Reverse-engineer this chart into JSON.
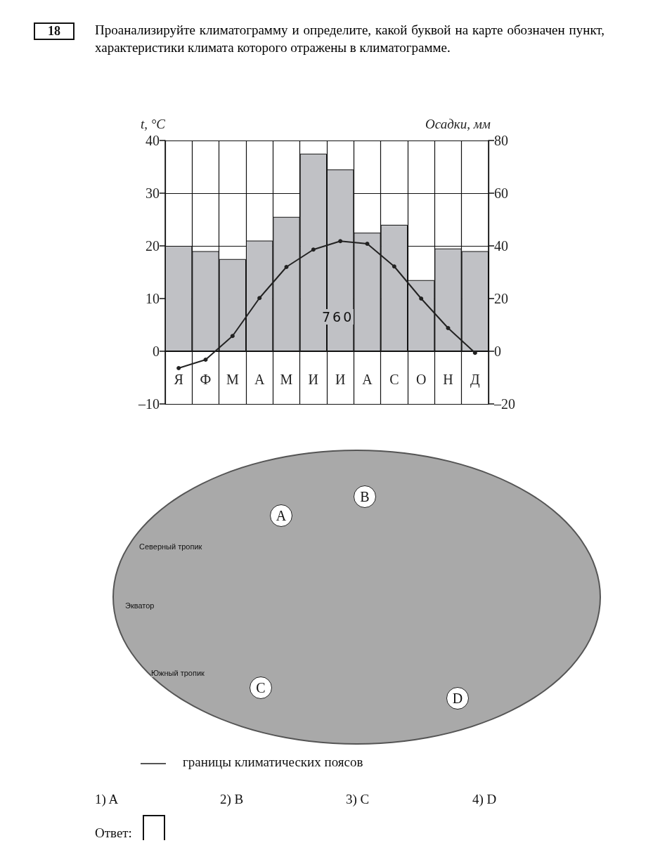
{
  "chart_data": {
    "type": "bar",
    "title": "Проанализируйте климатограмму и определите, какой буквой на карте обозначен пункт, характеристики климата которого отражены в климатограмме.",
    "ylabel": "t, °C",
    "y2label": "Осадки, мм",
    "categories": [
      "Я",
      "Ф",
      "М",
      "А",
      "М",
      "И",
      "И",
      "А",
      "С",
      "О",
      "Н",
      "Д"
    ],
    "series": [
      {
        "axis": "y2",
        "color": "#c0c1c5",
        "values": [
          40,
          38,
          35,
          42,
          51,
          75,
          69,
          45,
          48,
          27,
          39,
          38
        ]
      },
      {
        "type": "line",
        "axis": "y",
        "color": "#222222",
        "marker": "circle",
        "line_style": "solid",
        "values": [
          -3.2,
          -1.6,
          2.9,
          10.1,
          16.0,
          19.3,
          20.9,
          20.4,
          16.1,
          10.0,
          4.4,
          -0.3
        ]
      }
    ],
    "ylim": [
      -10,
      40
    ],
    "yticks": [
      {
        "value": -10,
        "label": "–10"
      },
      0,
      10,
      20,
      30,
      40
    ],
    "y2lim": [
      -20,
      80
    ],
    "y2ticks": [
      {
        "value": -20,
        "label": "–20"
      },
      0,
      20,
      40,
      60,
      80
    ],
    "grid": true,
    "annotations": [
      "18",
      "760",
      "Северный тропик",
      "Экватор",
      "Южный тропик",
      "A",
      "B",
      "C",
      "D",
      "границы климатических поясов",
      "1)  A",
      "2)  B",
      "3)  C",
      "4)  D",
      "Ответ:"
    ]
  }
}
